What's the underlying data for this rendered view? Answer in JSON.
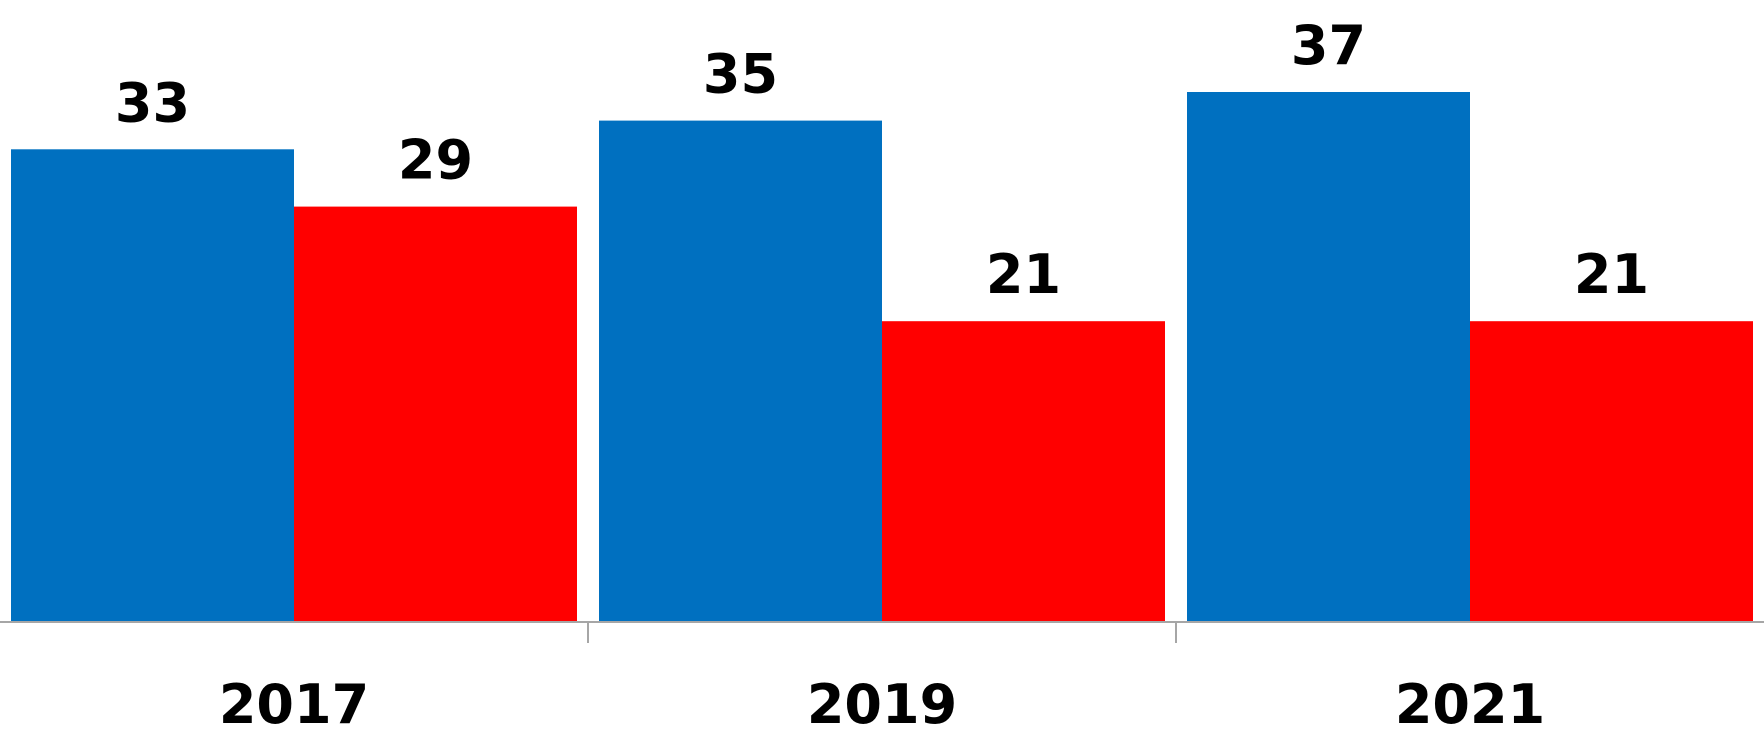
{
  "chart_data": {
    "type": "bar",
    "categories": [
      "2017",
      "2019",
      "2021"
    ],
    "series": [
      {
        "values": [
          33,
          35,
          37
        ],
        "color": "#0070C0"
      },
      {
        "values": [
          29,
          21,
          21
        ],
        "color": "#FF0000"
      }
    ],
    "ylim": [
      0,
      37
    ],
    "grid": false,
    "legend": "none",
    "data_labels": true,
    "axis_color": "#A6A6A6"
  }
}
